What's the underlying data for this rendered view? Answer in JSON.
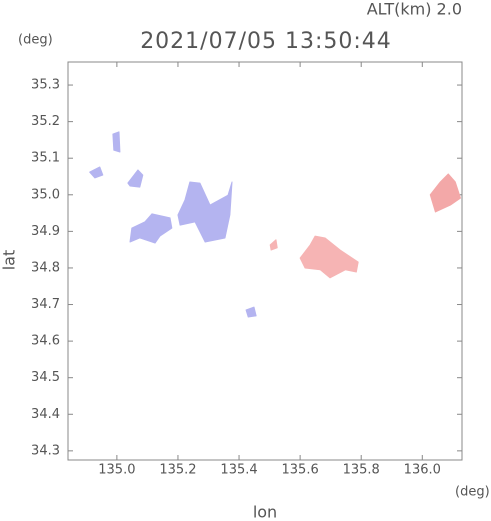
{
  "chart_data": {
    "type": "map",
    "title": "2021/07/05 13:50:44",
    "subtitle": "ALT(km) 2.0",
    "xlabel": "lon",
    "ylabel": "lat",
    "xunit": "(deg)",
    "yunit": "(deg)",
    "xlim": [
      134.84,
      136.13
    ],
    "ylim": [
      34.275,
      35.363
    ],
    "xticks": [
      {
        "value": 135,
        "label": "135.0"
      },
      135.2,
      135.4,
      135.6,
      135.8,
      {
        "value": 136,
        "label": "136.0"
      }
    ],
    "yticks": [
      34.3,
      34.4,
      34.5,
      34.6,
      34.7,
      34.8,
      34.9,
      {
        "value": 35,
        "label": "35.0"
      },
      35.1,
      35.2,
      35.3
    ],
    "regions": [
      {
        "color": "#b4b4f0",
        "lon": [
          135.043,
          135.049,
          135.092,
          135.115,
          135.174,
          135.18,
          135.141,
          135.125,
          135.075
        ],
        "lat": [
          34.871,
          34.909,
          34.926,
          34.948,
          34.937,
          34.909,
          34.887,
          34.868,
          34.882
        ]
      },
      {
        "color": "#b4b4f0",
        "lon": [
          135.2,
          135.223,
          135.239,
          135.272,
          135.305,
          135.364,
          135.377,
          135.37,
          135.354,
          135.289,
          135.256,
          135.207
        ],
        "lat": [
          34.945,
          34.986,
          35.035,
          35.032,
          34.972,
          34.999,
          35.035,
          34.945,
          34.882,
          34.871,
          34.926,
          34.917
        ]
      },
      {
        "color": "#b4b4f0",
        "lon": [
          134.911,
          134.944,
          134.954,
          134.928
        ],
        "lat": [
          35.062,
          35.076,
          35.054,
          35.046
        ]
      },
      {
        "color": "#b4b4f0",
        "lon": [
          134.987,
          135.007,
          135.01,
          134.99
        ],
        "lat": [
          35.166,
          35.172,
          35.117,
          35.122
        ]
      },
      {
        "color": "#b4b4f0",
        "lon": [
          135.036,
          135.069,
          135.085,
          135.075,
          135.043
        ],
        "lat": [
          35.032,
          35.068,
          35.054,
          35.021,
          35.024
        ]
      },
      {
        "color": "#b4b4f0",
        "lon": [
          135.423,
          135.449,
          135.456,
          135.43
        ],
        "lat": [
          34.685,
          34.693,
          34.669,
          34.666
        ]
      },
      {
        "color": "#f6b4b4",
        "lon": [
          135.6,
          135.633,
          135.649,
          135.682,
          135.731,
          135.79,
          135.784,
          135.748,
          135.698,
          135.666,
          135.616
        ],
        "lat": [
          34.827,
          34.863,
          34.887,
          34.882,
          34.849,
          34.816,
          34.789,
          34.795,
          34.773,
          34.795,
          34.8
        ]
      },
      {
        "color": "#f3a8a8",
        "lon": [
          136.026,
          136.059,
          136.085,
          136.108,
          136.125,
          136.092,
          136.043
        ],
        "lat": [
          35.0,
          35.035,
          35.057,
          35.035,
          34.991,
          34.972,
          34.953
        ]
      },
      {
        "color": "#f6b4b4",
        "lon": [
          135.502,
          135.521,
          135.525,
          135.505
        ],
        "lat": [
          34.863,
          34.877,
          34.855,
          34.849
        ]
      }
    ]
  }
}
